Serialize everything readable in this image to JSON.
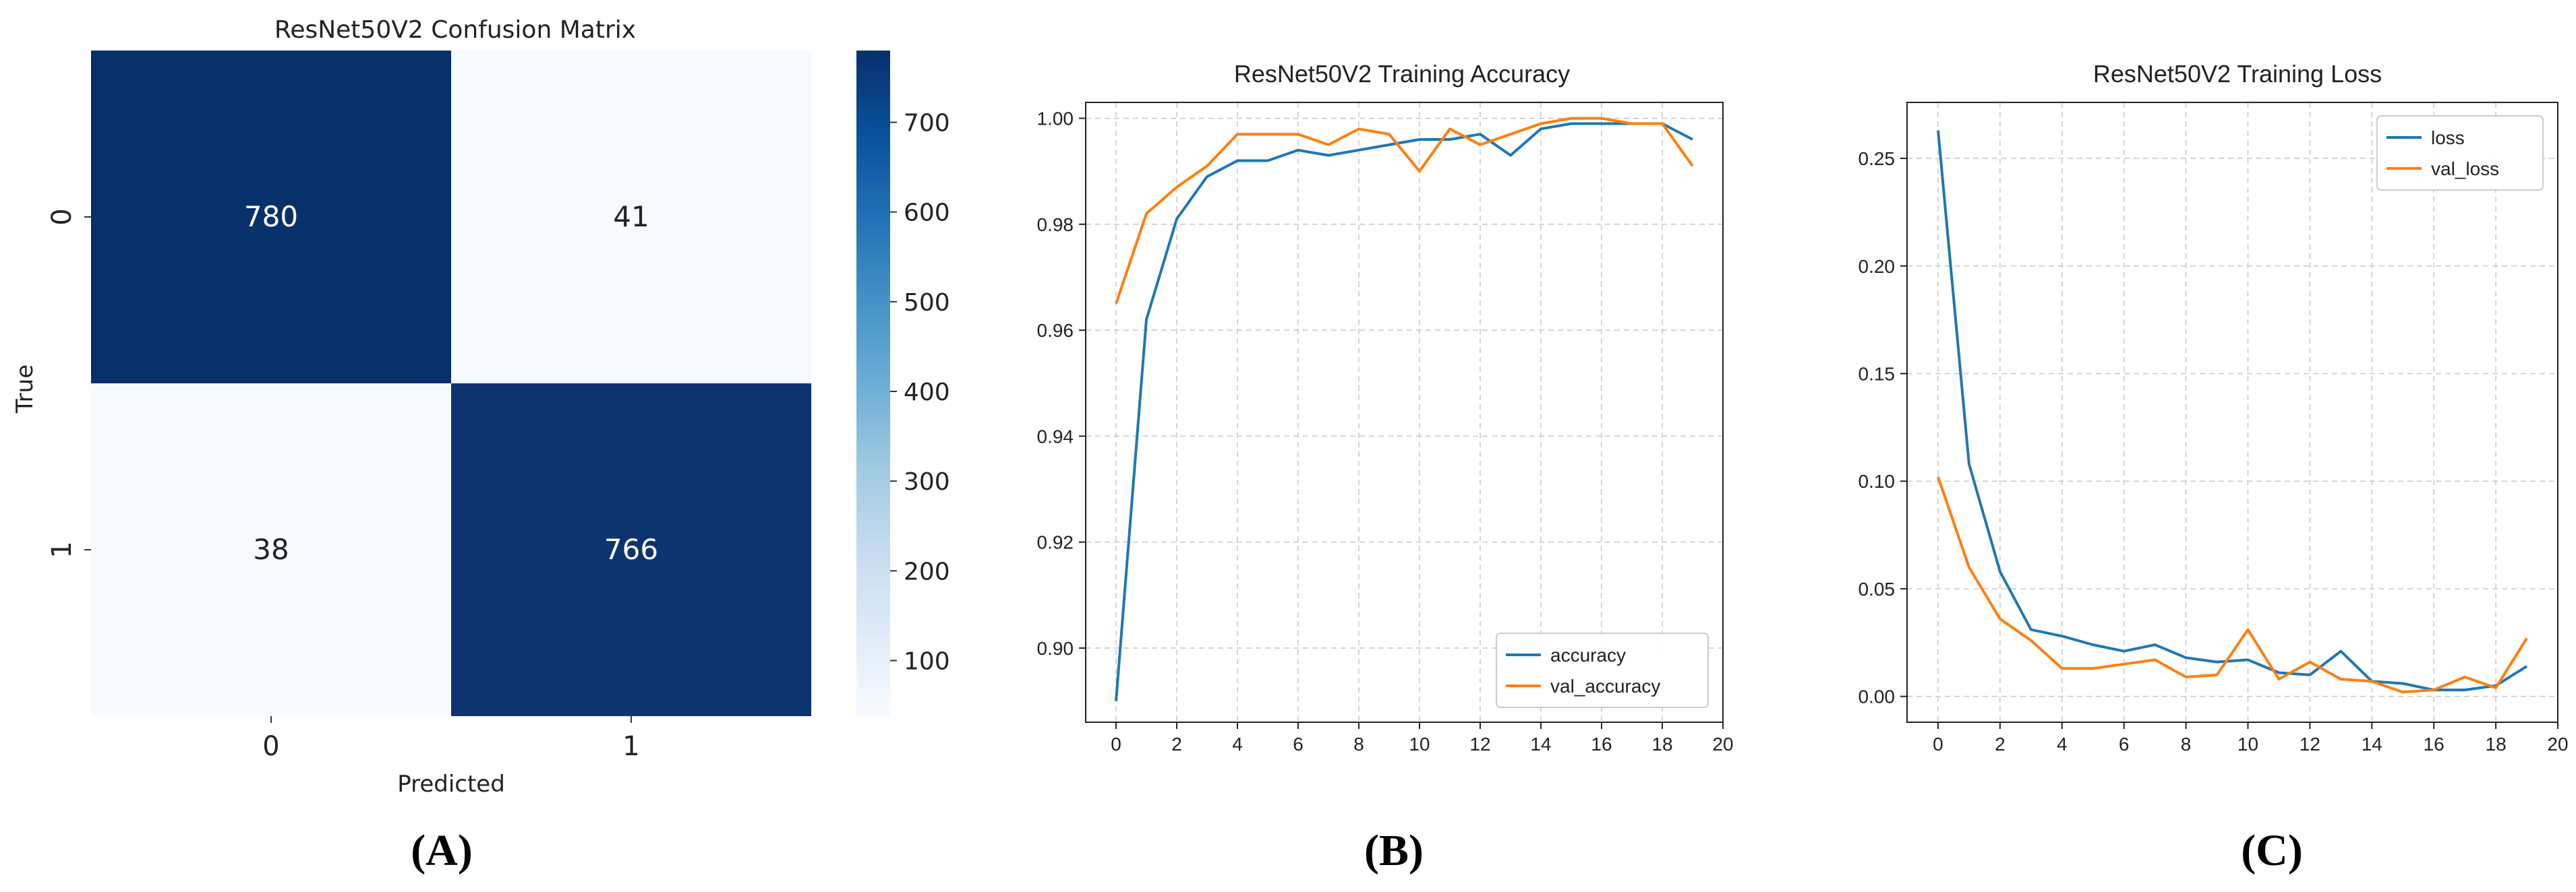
{
  "panel_labels": [
    "(A)",
    "(B)",
    "(C)"
  ],
  "chart_data": [
    {
      "type": "heatmap",
      "title": "ResNet50V2 Confusion Matrix",
      "xlabel": "Predicted",
      "ylabel": "True",
      "x_categories": [
        "0",
        "1"
      ],
      "y_categories": [
        "0",
        "1"
      ],
      "values": [
        [
          780,
          41
        ],
        [
          38,
          766
        ]
      ],
      "colormap": "Blues",
      "color_low": "#f7fbff",
      "color_high": "#08306b",
      "colorbar_range": [
        38,
        780
      ],
      "colorbar_ticks": [
        100,
        200,
        300,
        400,
        500,
        600,
        700
      ]
    },
    {
      "type": "line",
      "title": "ResNet50V2 Training Accuracy",
      "xlabel": "",
      "ylabel": "",
      "x": [
        0,
        1,
        2,
        3,
        4,
        5,
        6,
        7,
        8,
        9,
        10,
        11,
        12,
        13,
        14,
        15,
        16,
        17,
        18,
        19
      ],
      "xlim": [
        -1,
        20
      ],
      "ylim": [
        0.886,
        1.003
      ],
      "xticks": [
        0,
        2,
        4,
        6,
        8,
        10,
        12,
        14,
        16,
        18,
        20
      ],
      "yticks": [
        0.9,
        0.92,
        0.94,
        0.96,
        0.98,
        1.0
      ],
      "ytick_labels": [
        "0.90",
        "0.92",
        "0.94",
        "0.96",
        "0.98",
        "1.00"
      ],
      "grid": true,
      "legend": "lower-right",
      "series": [
        {
          "name": "accuracy",
          "color": "#1f77b4",
          "values": [
            0.89,
            0.962,
            0.981,
            0.989,
            0.992,
            0.992,
            0.994,
            0.993,
            0.994,
            0.995,
            0.996,
            0.996,
            0.997,
            0.993,
            0.998,
            0.999,
            0.999,
            0.999,
            0.999,
            0.996
          ]
        },
        {
          "name": "val_accuracy",
          "color": "#ff7f0e",
          "values": [
            0.965,
            0.982,
            0.987,
            0.991,
            0.997,
            0.997,
            0.997,
            0.995,
            0.998,
            0.997,
            0.99,
            0.998,
            0.995,
            0.997,
            0.999,
            1.0,
            1.0,
            0.999,
            0.999,
            0.991
          ]
        }
      ]
    },
    {
      "type": "line",
      "title": "ResNet50V2 Training Loss",
      "xlabel": "",
      "ylabel": "",
      "x": [
        0,
        1,
        2,
        3,
        4,
        5,
        6,
        7,
        8,
        9,
        10,
        11,
        12,
        13,
        14,
        15,
        16,
        17,
        18,
        19
      ],
      "xlim": [
        -1,
        20
      ],
      "ylim": [
        -0.012,
        0.276
      ],
      "xticks": [
        0,
        2,
        4,
        6,
        8,
        10,
        12,
        14,
        16,
        18,
        20
      ],
      "yticks": [
        0.0,
        0.05,
        0.1,
        0.15,
        0.2,
        0.25
      ],
      "ytick_labels": [
        "0.00",
        "0.05",
        "0.10",
        "0.15",
        "0.20",
        "0.25"
      ],
      "grid": true,
      "legend": "top-right",
      "series": [
        {
          "name": "loss",
          "color": "#1f77b4",
          "values": [
            0.263,
            0.108,
            0.058,
            0.031,
            0.028,
            0.024,
            0.021,
            0.024,
            0.018,
            0.016,
            0.017,
            0.011,
            0.01,
            0.021,
            0.007,
            0.006,
            0.003,
            0.003,
            0.005,
            0.014
          ]
        },
        {
          "name": "val_loss",
          "color": "#ff7f0e",
          "values": [
            0.102,
            0.06,
            0.036,
            0.026,
            0.013,
            0.013,
            0.015,
            0.017,
            0.009,
            0.01,
            0.031,
            0.008,
            0.016,
            0.008,
            0.007,
            0.002,
            0.003,
            0.009,
            0.004,
            0.027
          ]
        }
      ]
    }
  ]
}
